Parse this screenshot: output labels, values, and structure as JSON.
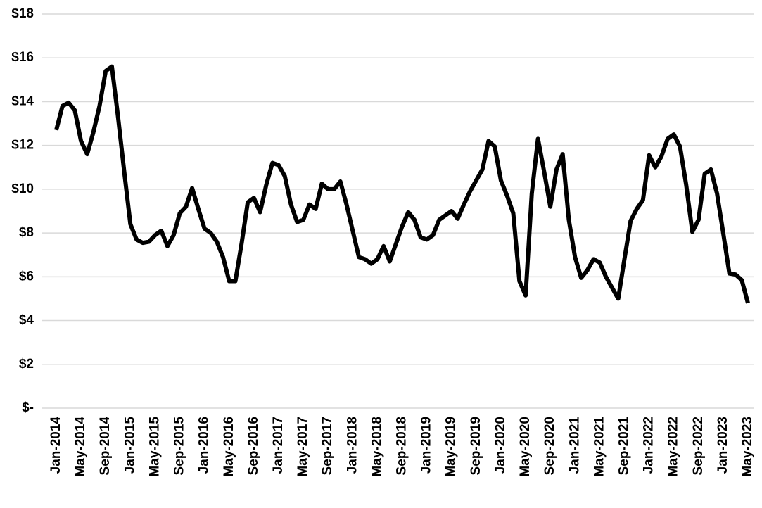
{
  "chart_data": {
    "type": "line",
    "categories": [
      "Jan-2014",
      null,
      null,
      null,
      "May-2014",
      null,
      null,
      null,
      "Sep-2014",
      null,
      null,
      null,
      "Jan-2015",
      null,
      null,
      null,
      "May-2015",
      null,
      null,
      null,
      "Sep-2015",
      null,
      null,
      null,
      "Jan-2016",
      null,
      null,
      null,
      "May-2016",
      null,
      null,
      null,
      "Sep-2016",
      null,
      null,
      null,
      "Jan-2017",
      null,
      null,
      null,
      "May-2017",
      null,
      null,
      null,
      "Sep-2017",
      null,
      null,
      null,
      "Jan-2018",
      null,
      null,
      null,
      "May-2018",
      null,
      null,
      null,
      "Sep-2018",
      null,
      null,
      null,
      "Jan-2019",
      null,
      null,
      null,
      "May-2019",
      null,
      null,
      null,
      "Sep-2019",
      null,
      null,
      null,
      "Jan-2020",
      null,
      null,
      null,
      "May-2020",
      null,
      null,
      null,
      "Sep-2020",
      null,
      null,
      null,
      "Jan-2021",
      null,
      null,
      null,
      "May-2021",
      null,
      null,
      null,
      "Sep-2021",
      null,
      null,
      null,
      "Jan-2022",
      null,
      null,
      null,
      "May-2022",
      null,
      null,
      null,
      "Sep-2022",
      null,
      null,
      null,
      "Jan-2023",
      null,
      null,
      null,
      "May-2023"
    ],
    "values": [
      12.7,
      13.8,
      13.95,
      13.6,
      12.2,
      11.6,
      12.6,
      13.8,
      15.4,
      15.6,
      13.3,
      10.8,
      8.4,
      7.7,
      7.55,
      7.6,
      7.9,
      8.1,
      7.4,
      7.9,
      8.9,
      9.2,
      10.05,
      9.1,
      8.2,
      8.0,
      7.6,
      6.9,
      5.8,
      5.8,
      7.5,
      9.4,
      9.6,
      8.95,
      10.2,
      11.2,
      11.1,
      10.6,
      9.3,
      8.5,
      8.6,
      9.3,
      9.1,
      10.25,
      10.0,
      10.0,
      10.35,
      9.3,
      8.1,
      6.9,
      6.8,
      6.6,
      6.8,
      7.4,
      6.7,
      7.5,
      8.3,
      8.95,
      8.6,
      7.8,
      7.7,
      7.9,
      8.6,
      8.8,
      9.0,
      8.65,
      9.3,
      9.9,
      10.4,
      10.9,
      12.2,
      11.95,
      10.4,
      9.7,
      8.9,
      5.8,
      5.15,
      9.8,
      12.3,
      10.8,
      9.2,
      10.9,
      11.6,
      8.6,
      6.9,
      5.95,
      6.3,
      6.8,
      6.65,
      6.0,
      5.5,
      5.0,
      6.8,
      8.55,
      9.1,
      9.5,
      11.55,
      11.0,
      11.5,
      12.3,
      12.5,
      11.95,
      10.2,
      8.05,
      8.6,
      10.7,
      10.9,
      9.8,
      8.0,
      6.15,
      6.1,
      5.85,
      4.8
    ],
    "color": "#000000",
    "ylim": [
      0,
      18
    ],
    "yticks": [
      {
        "value": 0,
        "label": "$-"
      },
      {
        "value": 2,
        "label": "$2"
      },
      {
        "value": 4,
        "label": "$4"
      },
      {
        "value": 6,
        "label": "$6"
      },
      {
        "value": 8,
        "label": "$8"
      },
      {
        "value": 10,
        "label": "$10"
      },
      {
        "value": 12,
        "label": "$12"
      },
      {
        "value": 14,
        "label": "$14"
      },
      {
        "value": 16,
        "label": "$16"
      },
      {
        "value": 18,
        "label": "$18"
      }
    ],
    "grid": true
  }
}
